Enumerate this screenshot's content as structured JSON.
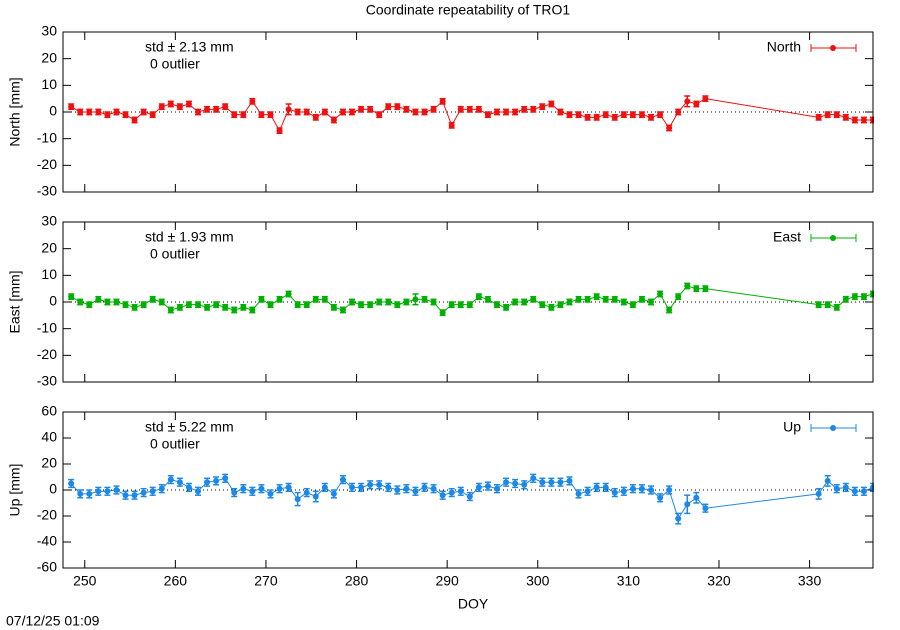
{
  "title": "Coordinate repeatability of TRO1",
  "timestamp": "07/12/25 01:09",
  "chart_data": [
    {
      "type": "line",
      "ylabel": "North [mm]",
      "annotation": "std ± 2.13 mm",
      "outliers": "0 outlier",
      "xlim": [
        247.6,
        337
      ],
      "ylim": [
        -30,
        30
      ],
      "yticks": [
        -30,
        -20,
        -10,
        0,
        10,
        20,
        30
      ],
      "zeroline": true,
      "legend": "top-right",
      "x": [
        248.5,
        249.5,
        250.5,
        251.5,
        252.5,
        253.5,
        254.5,
        255.5,
        256.5,
        257.5,
        258.5,
        259.5,
        260.5,
        261.5,
        262.5,
        263.5,
        264.5,
        265.5,
        266.5,
        267.5,
        268.5,
        269.5,
        270.5,
        271.5,
        272.5,
        273.5,
        274.5,
        275.5,
        276.5,
        277.5,
        278.5,
        279.5,
        280.5,
        281.5,
        282.5,
        283.5,
        284.5,
        285.5,
        286.5,
        287.5,
        288.5,
        289.5,
        290.5,
        291.5,
        292.5,
        293.5,
        294.5,
        295.5,
        296.5,
        297.5,
        298.5,
        299.5,
        300.5,
        301.5,
        302.5,
        303.5,
        304.5,
        305.5,
        306.5,
        307.5,
        308.5,
        309.5,
        310.5,
        311.5,
        312.5,
        313.5,
        314.5,
        315.5,
        316.5,
        317.5,
        318.5,
        331,
        332,
        333,
        334,
        335,
        336,
        337
      ],
      "series": [
        {
          "name": "North",
          "color": "#ee1111",
          "values": [
            2,
            0,
            0,
            0,
            -1,
            0,
            -1,
            -3,
            0,
            -1,
            2,
            3,
            2,
            3,
            0,
            1,
            1,
            2,
            -1,
            -1,
            4,
            -1,
            -1,
            -7,
            1,
            0,
            0,
            -2,
            0,
            -3,
            0,
            0,
            1,
            1,
            -1,
            2,
            2,
            1,
            0,
            0,
            1,
            4,
            -5,
            1,
            1,
            1,
            -1,
            0,
            0,
            0,
            1,
            1,
            2,
            3,
            0,
            -1,
            -1,
            -2,
            -2,
            -1,
            -2,
            -1,
            -1,
            -1,
            -2,
            -1,
            -6,
            0,
            4,
            3,
            5,
            -2,
            -1,
            -1,
            -2,
            -3,
            -3,
            -3
          ],
          "errors": [
            1,
            1,
            1,
            1,
            1,
            1,
            1,
            1,
            1,
            1,
            1,
            1,
            1,
            1,
            1,
            1,
            1,
            1,
            1,
            1,
            1,
            1,
            1,
            1,
            2,
            1,
            1,
            1,
            1,
            1,
            1,
            1,
            1,
            1,
            1,
            1,
            1,
            1,
            1,
            1,
            1,
            1,
            1,
            1,
            1,
            1,
            1,
            1,
            1,
            1,
            1,
            1,
            1,
            1,
            1,
            1,
            1,
            1,
            1,
            1,
            1,
            1,
            1,
            1,
            1,
            1,
            1,
            1,
            2,
            1,
            1,
            1,
            1,
            1,
            1,
            1,
            1,
            1
          ]
        }
      ]
    },
    {
      "type": "line",
      "ylabel": "East [mm]",
      "annotation": "std ± 1.93 mm",
      "outliers": "0 outlier",
      "xlim": [
        247.6,
        337
      ],
      "ylim": [
        -30,
        30
      ],
      "yticks": [
        -30,
        -20,
        -10,
        0,
        10,
        20,
        30
      ],
      "zeroline": true,
      "legend": "top-right",
      "x": [
        248.5,
        249.5,
        250.5,
        251.5,
        252.5,
        253.5,
        254.5,
        255.5,
        256.5,
        257.5,
        258.5,
        259.5,
        260.5,
        261.5,
        262.5,
        263.5,
        264.5,
        265.5,
        266.5,
        267.5,
        268.5,
        269.5,
        270.5,
        271.5,
        272.5,
        273.5,
        274.5,
        275.5,
        276.5,
        277.5,
        278.5,
        279.5,
        280.5,
        281.5,
        282.5,
        283.5,
        284.5,
        285.5,
        286.5,
        287.5,
        288.5,
        289.5,
        290.5,
        291.5,
        292.5,
        293.5,
        294.5,
        295.5,
        296.5,
        297.5,
        298.5,
        299.5,
        300.5,
        301.5,
        302.5,
        303.5,
        304.5,
        305.5,
        306.5,
        307.5,
        308.5,
        309.5,
        310.5,
        311.5,
        312.5,
        313.5,
        314.5,
        315.5,
        316.5,
        317.5,
        318.5,
        331,
        332,
        333,
        334,
        335,
        336,
        337
      ],
      "series": [
        {
          "name": "East",
          "color": "#00b000",
          "values": [
            2,
            0,
            -1,
            1,
            0,
            0,
            -1,
            -2,
            -1,
            1,
            0,
            -3,
            -2,
            -1,
            -1,
            -2,
            -1,
            -2,
            -3,
            -2,
            -3,
            1,
            -1,
            1,
            3,
            -1,
            -1,
            1,
            1,
            -2,
            -3,
            0,
            -1,
            -1,
            0,
            0,
            -1,
            0,
            1,
            1,
            0,
            -4,
            -1,
            -1,
            -1,
            2,
            1,
            -1,
            -2,
            0,
            0,
            1,
            -1,
            -2,
            -1,
            0,
            1,
            1,
            2,
            1,
            1,
            0,
            -1,
            1,
            0,
            3,
            -3,
            2,
            6,
            5,
            5,
            -1,
            -1,
            -2,
            1,
            2,
            2,
            3
          ],
          "errors": [
            1,
            1,
            1,
            1,
            1,
            1,
            1,
            1,
            1,
            1,
            1,
            1,
            1,
            1,
            1,
            1,
            1,
            1,
            1,
            1,
            1,
            1,
            1,
            1,
            1,
            1,
            1,
            1,
            1,
            1,
            1,
            1,
            1,
            1,
            1,
            1,
            1,
            1,
            2,
            1,
            1,
            1,
            1,
            1,
            1,
            1,
            1,
            1,
            1,
            1,
            1,
            1,
            1,
            1,
            1,
            1,
            1,
            1,
            1,
            1,
            1,
            1,
            1,
            1,
            1,
            1,
            1,
            1,
            1,
            1,
            1,
            1,
            1,
            1,
            1,
            1,
            1,
            1
          ]
        }
      ]
    },
    {
      "type": "line",
      "ylabel": "Up [mm]",
      "xlabel": "DOY",
      "annotation": "std ± 5.22 mm",
      "outliers": "0 outlier",
      "xlim": [
        247.6,
        337
      ],
      "ylim": [
        -60,
        60
      ],
      "yticks": [
        -60,
        -40,
        -20,
        0,
        20,
        40,
        60
      ],
      "xticks": [
        250,
        260,
        270,
        280,
        290,
        300,
        310,
        320,
        330
      ],
      "zeroline": true,
      "legend": "top-right",
      "x": [
        248.5,
        249.5,
        250.5,
        251.5,
        252.5,
        253.5,
        254.5,
        255.5,
        256.5,
        257.5,
        258.5,
        259.5,
        260.5,
        261.5,
        262.5,
        263.5,
        264.5,
        265.5,
        266.5,
        267.5,
        268.5,
        269.5,
        270.5,
        271.5,
        272.5,
        273.5,
        274.5,
        275.5,
        276.5,
        277.5,
        278.5,
        279.5,
        280.5,
        281.5,
        282.5,
        283.5,
        284.5,
        285.5,
        286.5,
        287.5,
        288.5,
        289.5,
        290.5,
        291.5,
        292.5,
        293.5,
        294.5,
        295.5,
        296.5,
        297.5,
        298.5,
        299.5,
        300.5,
        301.5,
        302.5,
        303.5,
        304.5,
        305.5,
        306.5,
        307.5,
        308.5,
        309.5,
        310.5,
        311.5,
        312.5,
        313.5,
        314.5,
        315.5,
        316.5,
        317.5,
        318.5,
        331,
        332,
        333,
        334,
        335,
        336,
        337
      ],
      "series": [
        {
          "name": "Up",
          "color": "#1e88e5",
          "values": [
            5,
            -3,
            -3,
            -1,
            -1,
            0,
            -4,
            -4,
            -2,
            -1,
            1,
            8,
            6,
            2,
            -1,
            6,
            7,
            9,
            -2,
            1,
            -1,
            1,
            -3,
            1,
            2,
            -7,
            -2,
            -5,
            2,
            -3,
            8,
            2,
            2,
            4,
            4,
            2,
            0,
            1,
            -1,
            2,
            1,
            -4,
            -2,
            -1,
            -5,
            2,
            3,
            1,
            6,
            5,
            4,
            9,
            6,
            6,
            6,
            7,
            -3,
            -1,
            2,
            2,
            -2,
            -1,
            1,
            1,
            0,
            -6,
            0,
            -22,
            -11,
            -6,
            -14,
            -3,
            7,
            1,
            2,
            -1,
            -1,
            2
          ],
          "errors": [
            3,
            3,
            3,
            3,
            3,
            3,
            3,
            3,
            3,
            3,
            3,
            3,
            3,
            3,
            3,
            3,
            3,
            3,
            3,
            3,
            3,
            3,
            3,
            3,
            3,
            5,
            3,
            4,
            3,
            3,
            3,
            3,
            3,
            3,
            3,
            3,
            3,
            3,
            3,
            3,
            3,
            3,
            3,
            3,
            3,
            3,
            3,
            3,
            3,
            3,
            3,
            3,
            3,
            3,
            3,
            3,
            3,
            3,
            3,
            3,
            3,
            3,
            3,
            3,
            3,
            3,
            3,
            4,
            7,
            4,
            3,
            4,
            4,
            3,
            3,
            3,
            3,
            3
          ]
        }
      ]
    }
  ]
}
